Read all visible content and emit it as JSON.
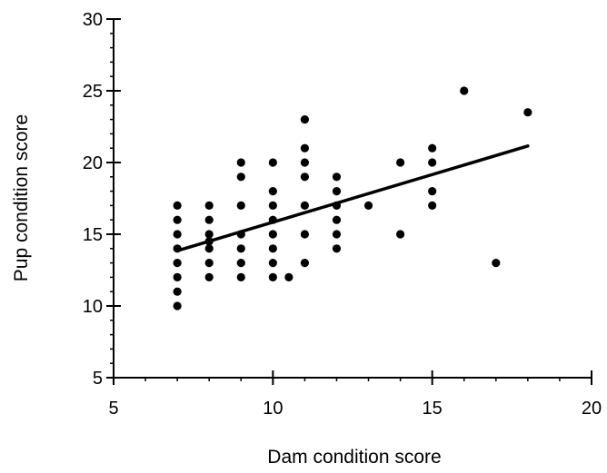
{
  "chart_data": {
    "type": "scatter",
    "title": "",
    "xlabel": "Dam condition score",
    "ylabel": "Pup condition score",
    "xlim": [
      5,
      20
    ],
    "ylim": [
      5,
      30
    ],
    "x_ticks": [
      5,
      10,
      15,
      20
    ],
    "y_ticks": [
      5,
      10,
      15,
      20,
      25,
      30
    ],
    "x_tick_labels": [
      "5",
      "10",
      "15",
      "20"
    ],
    "y_tick_labels": [
      "5",
      "10",
      "15",
      "20",
      "25",
      "30"
    ],
    "grid": false,
    "legend": "none",
    "points": [
      {
        "x": 7,
        "y": 10
      },
      {
        "x": 7,
        "y": 11
      },
      {
        "x": 7,
        "y": 12
      },
      {
        "x": 7,
        "y": 13
      },
      {
        "x": 7,
        "y": 14
      },
      {
        "x": 7,
        "y": 15
      },
      {
        "x": 7,
        "y": 16
      },
      {
        "x": 7,
        "y": 17
      },
      {
        "x": 8,
        "y": 12
      },
      {
        "x": 8,
        "y": 13
      },
      {
        "x": 8,
        "y": 14
      },
      {
        "x": 8,
        "y": 14.5
      },
      {
        "x": 8,
        "y": 15
      },
      {
        "x": 8,
        "y": 16
      },
      {
        "x": 8,
        "y": 17
      },
      {
        "x": 9,
        "y": 12
      },
      {
        "x": 9,
        "y": 13
      },
      {
        "x": 9,
        "y": 14
      },
      {
        "x": 9,
        "y": 15
      },
      {
        "x": 9,
        "y": 17
      },
      {
        "x": 9,
        "y": 19
      },
      {
        "x": 9,
        "y": 20
      },
      {
        "x": 10,
        "y": 12
      },
      {
        "x": 10,
        "y": 13
      },
      {
        "x": 10,
        "y": 14
      },
      {
        "x": 10,
        "y": 15
      },
      {
        "x": 10,
        "y": 16
      },
      {
        "x": 10,
        "y": 17
      },
      {
        "x": 10,
        "y": 18
      },
      {
        "x": 10,
        "y": 20
      },
      {
        "x": 10.5,
        "y": 12
      },
      {
        "x": 11,
        "y": 13
      },
      {
        "x": 11,
        "y": 15
      },
      {
        "x": 11,
        "y": 17
      },
      {
        "x": 11,
        "y": 19
      },
      {
        "x": 11,
        "y": 20
      },
      {
        "x": 11,
        "y": 21
      },
      {
        "x": 11,
        "y": 23
      },
      {
        "x": 12,
        "y": 14
      },
      {
        "x": 12,
        "y": 15
      },
      {
        "x": 12,
        "y": 16
      },
      {
        "x": 12,
        "y": 17
      },
      {
        "x": 12,
        "y": 18
      },
      {
        "x": 12,
        "y": 19
      },
      {
        "x": 13,
        "y": 17
      },
      {
        "x": 14,
        "y": 15
      },
      {
        "x": 14,
        "y": 20
      },
      {
        "x": 15,
        "y": 17
      },
      {
        "x": 15,
        "y": 18
      },
      {
        "x": 15,
        "y": 20
      },
      {
        "x": 15,
        "y": 21
      },
      {
        "x": 16,
        "y": 25
      },
      {
        "x": 17,
        "y": 13
      },
      {
        "x": 18,
        "y": 23.5
      }
    ],
    "trendline": {
      "x": [
        7,
        18
      ],
      "y": [
        13.85,
        21.15
      ]
    },
    "colors": {
      "points": "#000000",
      "line": "#000000",
      "axes": "#000000"
    }
  }
}
